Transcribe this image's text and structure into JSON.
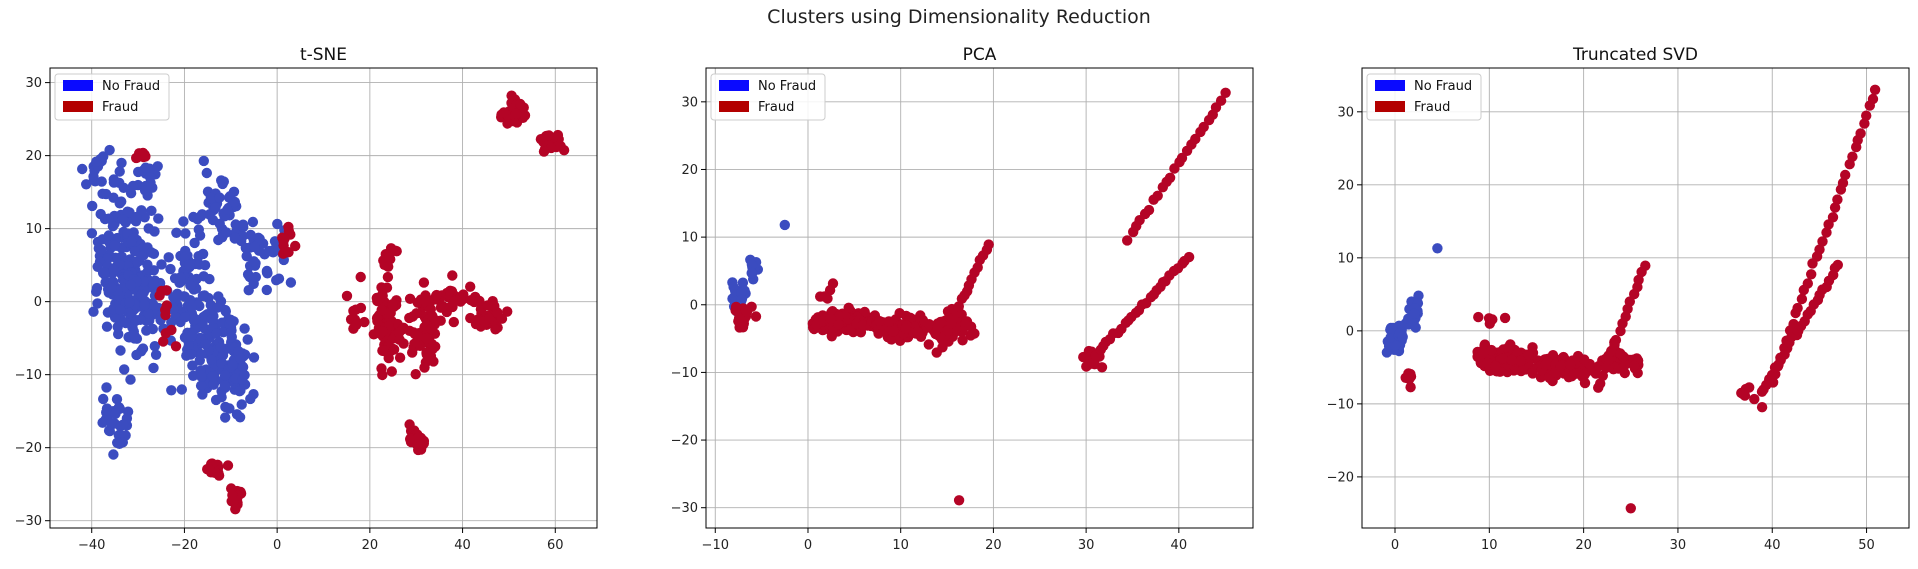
{
  "figure": {
    "suptitle": "Clusters using Dimensionality Reduction",
    "colors": {
      "no_fraud": "#3b4cc0",
      "fraud": "#b40426",
      "legend_no_fraud": "#0a0aff",
      "legend_fraud": "#b30000"
    },
    "legend_labels": [
      "No Fraud",
      "Fraud"
    ]
  },
  "chart_data": [
    {
      "type": "scatter",
      "title": "t-SNE",
      "xlabel": "",
      "ylabel": "",
      "xlim": [
        -49,
        69
      ],
      "ylim": [
        -31,
        32
      ],
      "xticks": [
        -40,
        -20,
        0,
        20,
        40,
        60
      ],
      "yticks": [
        -30,
        -20,
        -10,
        0,
        10,
        20,
        30
      ],
      "grid": true,
      "legend": "top-left",
      "series": [
        {
          "name": "No Fraud",
          "color": "#3b4cc0",
          "points": []
        },
        {
          "name": "Fraud",
          "color": "#b40426",
          "points": []
        }
      ],
      "clusters": {
        "no_fraud": [
          [
            -40,
            18,
            3,
            3,
            12
          ],
          [
            -33,
            7,
            7,
            10,
            160
          ],
          [
            -30,
            0,
            8,
            8,
            120
          ],
          [
            -35,
            -16,
            3,
            4,
            30
          ],
          [
            -13,
            14,
            5,
            5,
            40
          ],
          [
            -15,
            -6,
            6,
            8,
            120
          ],
          [
            -9,
            -9,
            4,
            6,
            60
          ],
          [
            -19,
            2,
            5,
            8,
            60
          ],
          [
            -2,
            6,
            5,
            4,
            40
          ],
          [
            -28,
            17,
            3,
            3,
            15
          ],
          [
            -8,
            9,
            4,
            2,
            20
          ]
        ],
        "fraud": [
          [
            51,
            26,
            2,
            2,
            35
          ],
          [
            59,
            22,
            3,
            1.2,
            25
          ],
          [
            -29,
            20,
            2,
            0.5,
            10
          ],
          [
            -24,
            -2,
            2,
            5,
            10
          ],
          [
            -13,
            -23,
            2,
            1,
            15
          ],
          [
            -9,
            -27,
            1.5,
            1,
            15
          ],
          [
            24,
            -3,
            3,
            5,
            80
          ],
          [
            32,
            -4,
            3,
            5,
            60
          ],
          [
            30,
            -19,
            2,
            1.5,
            25
          ],
          [
            37,
            0,
            6,
            3,
            40
          ],
          [
            45,
            -2,
            4,
            2,
            35
          ],
          [
            24,
            6,
            2,
            2,
            10
          ],
          [
            2,
            8,
            2,
            2,
            10
          ],
          [
            17,
            -3,
            2,
            5,
            10
          ]
        ]
      }
    },
    {
      "type": "scatter",
      "title": "PCA",
      "xlabel": "",
      "ylabel": "",
      "xlim": [
        -11,
        48
      ],
      "ylim": [
        -33,
        35
      ],
      "xticks": [
        -10,
        0,
        10,
        20,
        30,
        40
      ],
      "yticks": [
        -30,
        -20,
        -10,
        0,
        10,
        20,
        30
      ],
      "grid": true,
      "legend": "top-left",
      "series": [
        {
          "name": "No Fraud",
          "color": "#3b4cc0",
          "points": [
            [
              -2.5,
              11.8
            ]
          ]
        },
        {
          "name": "Fraud",
          "color": "#b40426",
          "points": [
            [
              16.3,
              -28.9
            ]
          ]
        }
      ],
      "clusters": {
        "no_fraud": [
          [
            -7.5,
            1.5,
            0.7,
            2,
            40
          ],
          [
            -6,
            5,
            0.6,
            2,
            12
          ]
        ],
        "fraud": [
          [
            -7,
            -2,
            1,
            2,
            20
          ],
          [
            4,
            -2.5,
            3,
            1.5,
            140
          ],
          [
            10,
            -3.5,
            3,
            1.6,
            140
          ],
          [
            16,
            -3,
            2,
            2,
            50
          ],
          [
            2,
            2,
            1,
            1,
            5
          ],
          [
            31,
            -8,
            1.5,
            2,
            10
          ]
        ]
      },
      "lines": [
        [
          [
            34.5,
            9.8
          ],
          [
            45,
            31
          ],
          24
        ],
        [
          [
            30,
            -9
          ],
          [
            41,
            7
          ],
          30
        ],
        [
          [
            14,
            -7
          ],
          [
            19.5,
            9
          ],
          20
        ]
      ]
    },
    {
      "type": "scatter",
      "title": "Truncated SVD",
      "xlabel": "",
      "ylabel": "",
      "xlim": [
        -3.5,
        54.5
      ],
      "ylim": [
        -27,
        36
      ],
      "xticks": [
        0,
        10,
        20,
        30,
        40,
        50
      ],
      "yticks": [
        -20,
        -10,
        0,
        10,
        20,
        30
      ],
      "grid": true,
      "legend": "top-left",
      "series": [
        {
          "name": "No Fraud",
          "color": "#3b4cc0",
          "points": [
            [
              4.5,
              11.3
            ]
          ]
        },
        {
          "name": "Fraud",
          "color": "#b40426",
          "points": [
            [
              25,
              -24.3
            ]
          ]
        }
      ],
      "clusters": {
        "no_fraud": [
          [
            0.2,
            -1,
            0.8,
            2,
            40
          ],
          [
            2,
            3,
            0.7,
            2.5,
            15
          ]
        ],
        "fraud": [
          [
            12,
            -4,
            3,
            1.6,
            160
          ],
          [
            18,
            -5,
            3,
            1.6,
            120
          ],
          [
            24,
            -4,
            2,
            2,
            40
          ],
          [
            1.5,
            -6,
            0.6,
            1.5,
            8
          ],
          [
            10,
            1.5,
            1.5,
            1,
            5
          ],
          [
            38,
            -9,
            1.5,
            1.5,
            8
          ]
        ]
      },
      "lines": [
        [
          [
            40,
            -7
          ],
          [
            51,
            33
          ],
          36
        ],
        [
          [
            39,
            -8
          ],
          [
            47,
            9
          ],
          26
        ],
        [
          [
            21.5,
            -8
          ],
          [
            26.5,
            9
          ],
          18
        ]
      ]
    }
  ]
}
